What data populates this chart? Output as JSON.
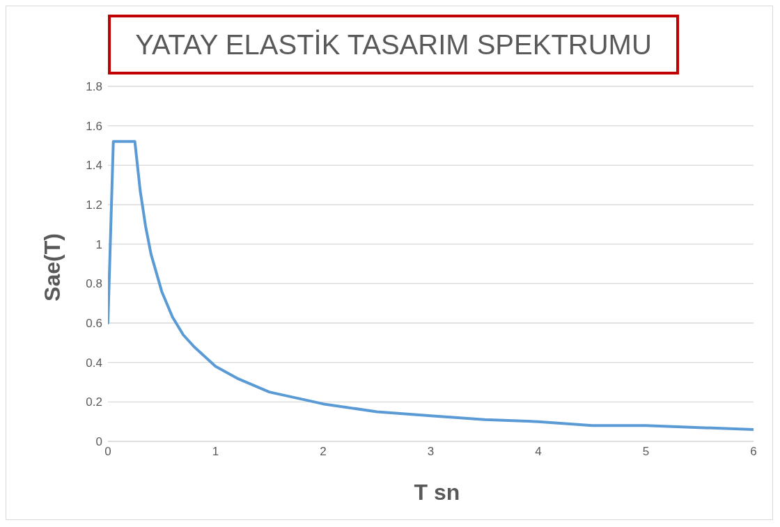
{
  "chart_data": {
    "type": "line",
    "title": "YATAY ELASTİK TASARIM SPEKTRUMU",
    "xlabel": "T sn",
    "ylabel": "Sae(T)",
    "x": [
      0,
      0.05,
      0.25,
      0.3,
      0.35,
      0.4,
      0.5,
      0.6,
      0.7,
      0.8,
      1,
      1.2,
      1.5,
      2,
      2.5,
      3,
      3.5,
      4,
      4.5,
      5,
      5.5,
      6
    ],
    "series": [
      {
        "color": "#5b9bd5",
        "values": [
          0.6,
          1.52,
          1.52,
          1.27,
          1.09,
          0.95,
          0.76,
          0.63,
          0.54,
          0.48,
          0.38,
          0.32,
          0.25,
          0.19,
          0.15,
          0.13,
          0.11,
          0.1,
          0.08,
          0.08,
          0.07,
          0.06
        ]
      }
    ],
    "xlim": [
      0,
      6
    ],
    "xticks": [
      0,
      1,
      2,
      3,
      4,
      5,
      6
    ],
    "ylim": [
      0,
      1.8
    ],
    "yticks": [
      0,
      0.2,
      0.4,
      0.6,
      0.8,
      1,
      1.2,
      1.4,
      1.6,
      1.8
    ],
    "grid": "y",
    "legend": false,
    "marker": "none",
    "line_style": "solid"
  }
}
